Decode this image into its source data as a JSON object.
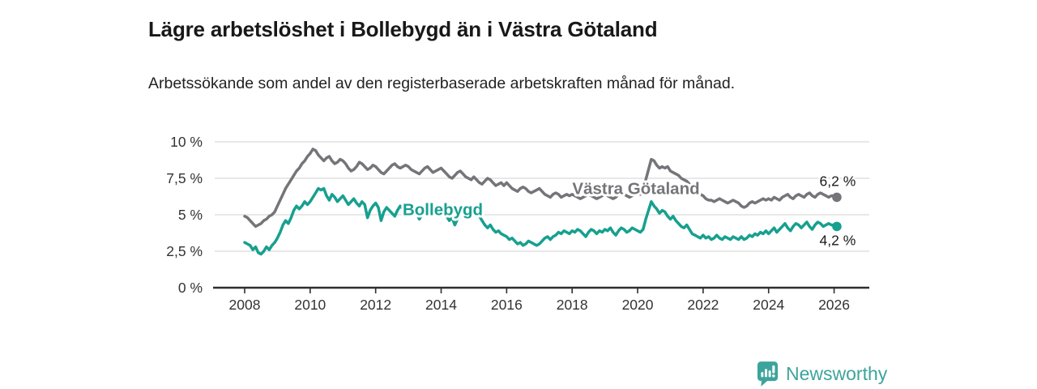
{
  "header": {
    "title": "Lägre arbetslöshet i Bollebygd än i Västra Götaland",
    "subtitle": "Arbetssökande som andel av den registerbaserade arbetskraften månad för månad."
  },
  "branding": {
    "wordmark": "Newsworthy",
    "logo_icon": "speech-bubble-bar-chart-exclamation",
    "brand_color": "#3da49c"
  },
  "colors": {
    "bollebygd_line": "#17a08f",
    "vastra_gotaland_line": "#757478",
    "gridline": "#d9d9d9",
    "axis": "#2e2e2e",
    "tick_text": "#333333",
    "value_label_text": "#1a1a1a",
    "background": "#ffffff"
  },
  "chart_data": {
    "type": "line",
    "title": "Lägre arbetslöshet i Bollebygd än i Västra Götaland",
    "subtitle": "Arbetssökande som andel av den registerbaserade arbetskraften månad för månad.",
    "unit": "%",
    "x_start_year": 2008,
    "x_months_per_step": 1,
    "x_end": "2026-02",
    "xlim": [
      2007.1,
      2027.1
    ],
    "ylim": [
      0,
      10
    ],
    "grid": true,
    "legend_position": "inline-labels",
    "xticks": [
      2008,
      2010,
      2012,
      2014,
      2016,
      2018,
      2020,
      2022,
      2024,
      2026
    ],
    "yticks": [
      {
        "value": 0,
        "label": "0 %"
      },
      {
        "value": 2.5,
        "label": "2,5 %"
      },
      {
        "value": 5,
        "label": "5 %"
      },
      {
        "value": 7.5,
        "label": "7,5 %"
      },
      {
        "value": 10,
        "label": "10 %"
      }
    ],
    "series": [
      {
        "name": "Bollebygd",
        "color": "#17a08f",
        "end_label": "4,2 %",
        "end_value": 4.2,
        "end_label_side": "below",
        "values": [
          3.1,
          3.0,
          2.9,
          2.6,
          2.8,
          2.4,
          2.3,
          2.5,
          2.8,
          2.6,
          2.9,
          3.1,
          3.4,
          3.8,
          4.3,
          4.6,
          4.4,
          4.8,
          5.3,
          5.6,
          5.4,
          5.6,
          5.9,
          5.7,
          5.9,
          6.2,
          6.5,
          6.8,
          6.7,
          6.8,
          6.3,
          6.0,
          6.4,
          6.2,
          5.9,
          6.1,
          6.3,
          6.0,
          5.7,
          5.9,
          6.1,
          5.8,
          5.6,
          5.9,
          5.7,
          4.8,
          5.3,
          5.6,
          5.8,
          5.5,
          4.6,
          5.2,
          5.5,
          5.3,
          5.1,
          4.9,
          5.3,
          5.6,
          5.4,
          5.2,
          5.5,
          5.7,
          5.4,
          5.1,
          4.7,
          5.0,
          5.3,
          5.5,
          5.2,
          5.0,
          5.3,
          5.1,
          5.4,
          5.2,
          4.9,
          4.6,
          4.8,
          4.3,
          4.7,
          5.0,
          5.2,
          4.9,
          5.1,
          4.8,
          5.0,
          5.2,
          4.9,
          4.6,
          4.3,
          4.1,
          4.3,
          4.0,
          3.8,
          3.9,
          3.7,
          3.6,
          3.5,
          3.3,
          3.4,
          3.2,
          3.0,
          3.1,
          2.9,
          3.0,
          3.2,
          3.1,
          3.0,
          2.9,
          3.0,
          3.2,
          3.4,
          3.5,
          3.3,
          3.5,
          3.6,
          3.8,
          3.7,
          3.9,
          3.8,
          3.7,
          3.9,
          3.8,
          4.0,
          3.9,
          3.7,
          3.5,
          3.8,
          4.0,
          3.9,
          3.7,
          3.9,
          3.8,
          4.0,
          3.9,
          4.1,
          3.8,
          3.6,
          3.9,
          4.1,
          4.0,
          3.8,
          3.9,
          4.1,
          4.0,
          3.9,
          3.8,
          4.0,
          4.7,
          5.3,
          5.9,
          5.6,
          5.4,
          5.1,
          5.3,
          5.2,
          4.9,
          4.7,
          4.9,
          4.6,
          4.4,
          4.2,
          4.1,
          4.3,
          4.0,
          3.7,
          3.6,
          3.5,
          3.4,
          3.6,
          3.4,
          3.5,
          3.3,
          3.4,
          3.6,
          3.4,
          3.3,
          3.5,
          3.4,
          3.3,
          3.5,
          3.4,
          3.3,
          3.5,
          3.3,
          3.4,
          3.6,
          3.5,
          3.7,
          3.6,
          3.8,
          3.7,
          3.9,
          3.7,
          3.9,
          4.1,
          3.8,
          4.0,
          4.2,
          4.4,
          4.1,
          3.9,
          4.2,
          4.4,
          4.3,
          4.1,
          4.3,
          4.5,
          4.2,
          4.0,
          4.3,
          4.5,
          4.4,
          4.2,
          4.3,
          4.4,
          4.3,
          4.3,
          4.2
        ]
      },
      {
        "name": "Västra Götaland",
        "color": "#757478",
        "end_label": "6,2 %",
        "end_value": 6.2,
        "end_label_side": "above",
        "values": [
          4.9,
          4.8,
          4.6,
          4.4,
          4.2,
          4.3,
          4.4,
          4.6,
          4.7,
          4.9,
          5.0,
          5.2,
          5.6,
          6.0,
          6.4,
          6.8,
          7.1,
          7.4,
          7.7,
          8.0,
          8.2,
          8.5,
          8.7,
          9.0,
          9.2,
          9.5,
          9.4,
          9.1,
          8.9,
          8.7,
          8.9,
          9.0,
          8.7,
          8.5,
          8.6,
          8.8,
          8.7,
          8.5,
          8.2,
          8.0,
          8.1,
          8.3,
          8.6,
          8.5,
          8.3,
          8.1,
          8.2,
          8.4,
          8.3,
          8.1,
          7.9,
          7.8,
          8.0,
          8.2,
          8.4,
          8.5,
          8.3,
          8.2,
          8.3,
          8.4,
          8.3,
          8.1,
          8.0,
          7.9,
          7.8,
          8.0,
          8.2,
          8.3,
          8.1,
          7.9,
          8.0,
          8.1,
          8.2,
          8.0,
          7.8,
          7.6,
          7.5,
          7.7,
          7.9,
          8.0,
          7.8,
          7.6,
          7.5,
          7.4,
          7.6,
          7.4,
          7.2,
          7.1,
          7.3,
          7.5,
          7.4,
          7.2,
          7.0,
          7.1,
          7.2,
          7.0,
          7.2,
          7.0,
          6.8,
          6.7,
          6.6,
          6.8,
          6.9,
          6.8,
          6.6,
          6.5,
          6.6,
          6.7,
          6.8,
          6.6,
          6.4,
          6.3,
          6.2,
          6.4,
          6.5,
          6.4,
          6.2,
          6.3,
          6.4,
          6.3,
          6.4,
          6.3,
          6.2,
          6.1,
          6.2,
          6.3,
          6.4,
          6.3,
          6.2,
          6.1,
          6.2,
          6.3,
          6.4,
          6.3,
          6.2,
          6.1,
          6.2,
          6.4,
          6.5,
          6.4,
          6.3,
          6.2,
          6.3,
          6.4,
          6.5,
          6.4,
          6.6,
          7.4,
          8.1,
          8.8,
          8.7,
          8.4,
          8.2,
          8.3,
          8.2,
          8.3,
          8.0,
          7.9,
          7.8,
          7.7,
          7.5,
          7.4,
          7.3,
          7.1,
          6.9,
          6.7,
          6.5,
          6.4,
          6.3,
          6.1,
          6.0,
          6.0,
          5.9,
          6.0,
          6.1,
          6.0,
          5.9,
          5.8,
          5.9,
          6.0,
          5.9,
          5.8,
          5.6,
          5.5,
          5.6,
          5.8,
          5.9,
          5.8,
          5.9,
          6.0,
          6.1,
          6.0,
          6.1,
          6.0,
          6.2,
          6.1,
          6.0,
          6.2,
          6.3,
          6.4,
          6.2,
          6.1,
          6.3,
          6.4,
          6.3,
          6.2,
          6.4,
          6.5,
          6.3,
          6.2,
          6.4,
          6.5,
          6.4,
          6.3,
          6.2,
          6.3,
          6.3,
          6.2
        ]
      }
    ],
    "annotations": [
      {
        "text": "Bollebygd",
        "x": 2014.05,
        "y": 5.35,
        "color": "#17a08f"
      },
      {
        "text": "Västra Götaland",
        "x": 2019.95,
        "y": 6.8,
        "color": "#757478"
      }
    ]
  }
}
